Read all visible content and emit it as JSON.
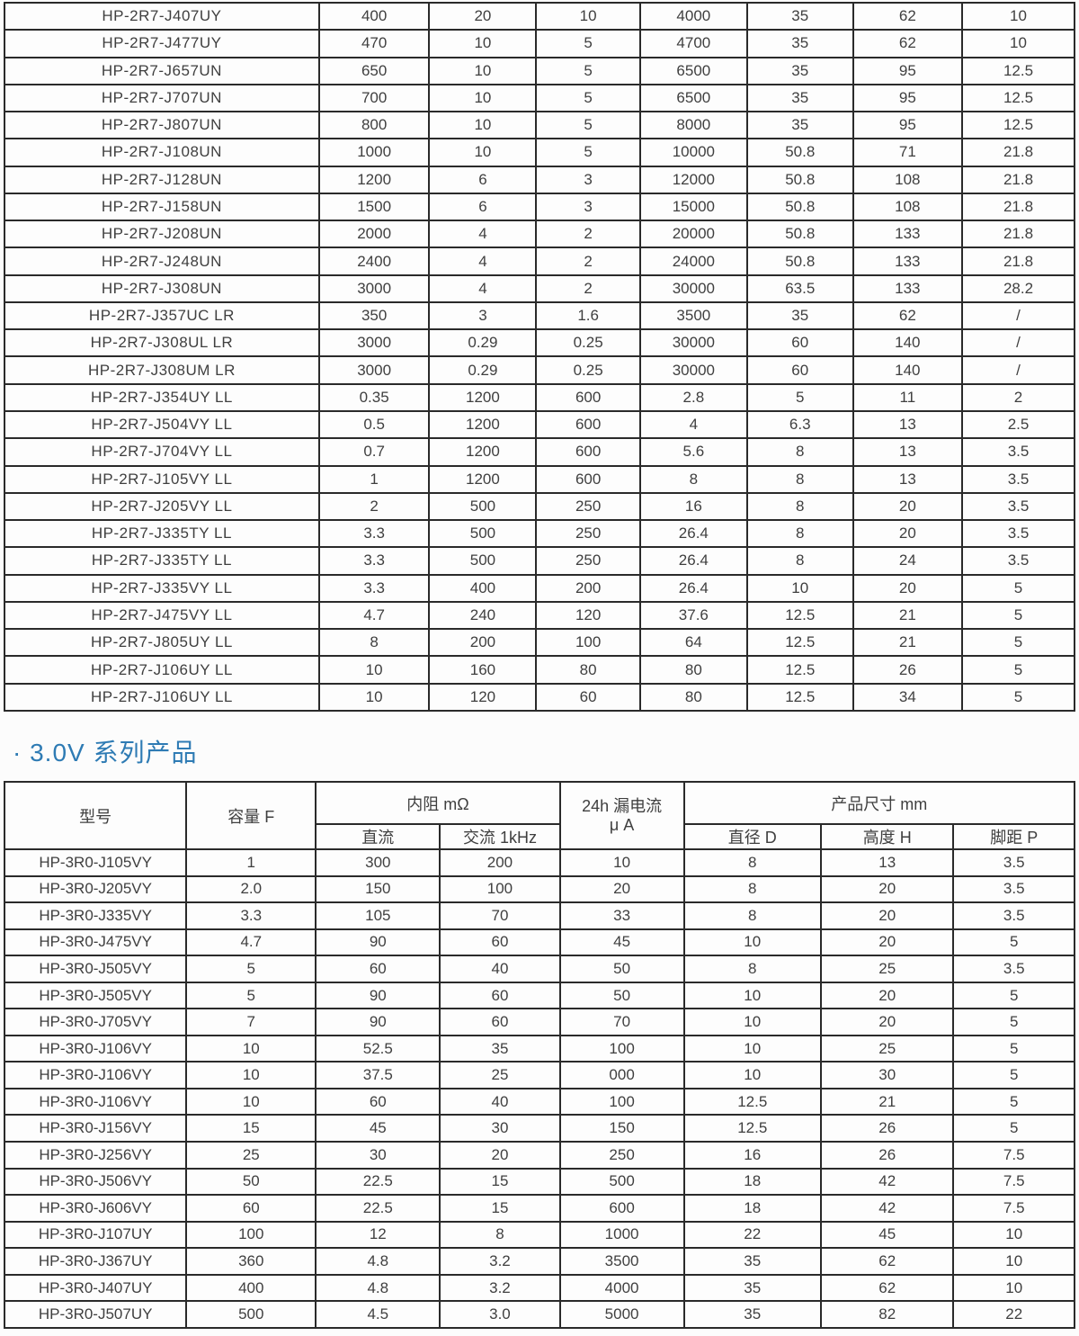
{
  "colors": {
    "section_title": "#2e7bb4",
    "table_border": "#2a2a2a",
    "text": "#3f3f3f",
    "background": "#fcfcfc"
  },
  "section": {
    "title": "· 3.0V 系列产品"
  },
  "table_2v7": {
    "rows": [
      [
        "HP-2R7-J407UY",
        "400",
        "20",
        "10",
        "4000",
        "35",
        "62",
        "10"
      ],
      [
        "HP-2R7-J477UY",
        "470",
        "10",
        "5",
        "4700",
        "35",
        "62",
        "10"
      ],
      [
        "HP-2R7-J657UN",
        "650",
        "10",
        "5",
        "6500",
        "35",
        "95",
        "12.5"
      ],
      [
        "HP-2R7-J707UN",
        "700",
        "10",
        "5",
        "6500",
        "35",
        "95",
        "12.5"
      ],
      [
        "HP-2R7-J807UN",
        "800",
        "10",
        "5",
        "8000",
        "35",
        "95",
        "12.5"
      ],
      [
        "HP-2R7-J108UN",
        "1000",
        "10",
        "5",
        "10000",
        "50.8",
        "71",
        "21.8"
      ],
      [
        "HP-2R7-J128UN",
        "1200",
        "6",
        "3",
        "12000",
        "50.8",
        "108",
        "21.8"
      ],
      [
        "HP-2R7-J158UN",
        "1500",
        "6",
        "3",
        "15000",
        "50.8",
        "108",
        "21.8"
      ],
      [
        "HP-2R7-J208UN",
        "2000",
        "4",
        "2",
        "20000",
        "50.8",
        "133",
        "21.8"
      ],
      [
        "HP-2R7-J248UN",
        "2400",
        "4",
        "2",
        "24000",
        "50.8",
        "133",
        "21.8"
      ],
      [
        "HP-2R7-J308UN",
        "3000",
        "4",
        "2",
        "30000",
        "63.5",
        "133",
        "28.2"
      ],
      [
        "HP-2R7-J357UC LR",
        "350",
        "3",
        "1.6",
        "3500",
        "35",
        "62",
        "/"
      ],
      [
        "HP-2R7-J308UL LR",
        "3000",
        "0.29",
        "0.25",
        "30000",
        "60",
        "140",
        "/"
      ],
      [
        "HP-2R7-J308UM LR",
        "3000",
        "0.29",
        "0.25",
        "30000",
        "60",
        "140",
        "/"
      ],
      [
        "HP-2R7-J354UY LL",
        "0.35",
        "1200",
        "600",
        "2.8",
        "5",
        "11",
        "2"
      ],
      [
        "HP-2R7-J504VY LL",
        "0.5",
        "1200",
        "600",
        "4",
        "6.3",
        "13",
        "2.5"
      ],
      [
        "HP-2R7-J704VY LL",
        "0.7",
        "1200",
        "600",
        "5.6",
        "8",
        "13",
        "3.5"
      ],
      [
        "HP-2R7-J105VY LL",
        "1",
        "1200",
        "600",
        "8",
        "8",
        "13",
        "3.5"
      ],
      [
        "HP-2R7-J205VY LL",
        "2",
        "500",
        "250",
        "16",
        "8",
        "20",
        "3.5"
      ],
      [
        "HP-2R7-J335TY LL",
        "3.3",
        "500",
        "250",
        "26.4",
        "8",
        "20",
        "3.5"
      ],
      [
        "HP-2R7-J335TY LL",
        "3.3",
        "500",
        "250",
        "26.4",
        "8",
        "24",
        "3.5"
      ],
      [
        "HP-2R7-J335VY LL",
        "3.3",
        "400",
        "200",
        "26.4",
        "10",
        "20",
        "5"
      ],
      [
        "HP-2R7-J475VY LL",
        "4.7",
        "240",
        "120",
        "37.6",
        "12.5",
        "21",
        "5"
      ],
      [
        "HP-2R7-J805UY LL",
        "8",
        "200",
        "100",
        "64",
        "12.5",
        "21",
        "5"
      ],
      [
        "HP-2R7-J106UY LL",
        "10",
        "160",
        "80",
        "80",
        "12.5",
        "26",
        "5"
      ],
      [
        "HP-2R7-J106UY LL",
        "10",
        "120",
        "60",
        "80",
        "12.5",
        "34",
        "5"
      ]
    ]
  },
  "table_3v0": {
    "header": {
      "model": "型号",
      "capacity": "容量 F",
      "esr_group": "内阻 mΩ",
      "esr_dc": "直流",
      "esr_ac": "交流 1kHz",
      "leakage_line1": "24h 漏电流",
      "leakage_line2": "μ A",
      "dims_group": "产品尺寸 mm",
      "dim_d": "直径 D",
      "dim_h": "高度 H",
      "dim_p": "脚距 P"
    },
    "rows": [
      [
        "HP-3R0-J105VY",
        "1",
        "300",
        "200",
        "10",
        "8",
        "13",
        "3.5"
      ],
      [
        "HP-3R0-J205VY",
        "2.0",
        "150",
        "100",
        "20",
        "8",
        "20",
        "3.5"
      ],
      [
        "HP-3R0-J335VY",
        "3.3",
        "105",
        "70",
        "33",
        "8",
        "20",
        "3.5"
      ],
      [
        "HP-3R0-J475VY",
        "4.7",
        "90",
        "60",
        "45",
        "10",
        "20",
        "5"
      ],
      [
        "HP-3R0-J505VY",
        "5",
        "60",
        "40",
        "50",
        "8",
        "25",
        "3.5"
      ],
      [
        "HP-3R0-J505VY",
        "5",
        "90",
        "60",
        "50",
        "10",
        "20",
        "5"
      ],
      [
        "HP-3R0-J705VY",
        "7",
        "90",
        "60",
        "70",
        "10",
        "20",
        "5"
      ],
      [
        "HP-3R0-J106VY",
        "10",
        "52.5",
        "35",
        "100",
        "10",
        "25",
        "5"
      ],
      [
        "HP-3R0-J106VY",
        "10",
        "37.5",
        "25",
        "000",
        "10",
        "30",
        "5"
      ],
      [
        "HP-3R0-J106VY",
        "10",
        "60",
        "40",
        "100",
        "12.5",
        "21",
        "5"
      ],
      [
        "HP-3R0-J156VY",
        "15",
        "45",
        "30",
        "150",
        "12.5",
        "26",
        "5"
      ],
      [
        "HP-3R0-J256VY",
        "25",
        "30",
        "20",
        "250",
        "16",
        "26",
        "7.5"
      ],
      [
        "HP-3R0-J506VY",
        "50",
        "22.5",
        "15",
        "500",
        "18",
        "42",
        "7.5"
      ],
      [
        "HP-3R0-J606VY",
        "60",
        "22.5",
        "15",
        "600",
        "18",
        "42",
        "7.5"
      ],
      [
        "HP-3R0-J107UY",
        "100",
        "12",
        "8",
        "1000",
        "22",
        "45",
        "10"
      ],
      [
        "HP-3R0-J367UY",
        "360",
        "4.8",
        "3.2",
        "3500",
        "35",
        "62",
        "10"
      ],
      [
        "HP-3R0-J407UY",
        "400",
        "4.8",
        "3.2",
        "4000",
        "35",
        "62",
        "10"
      ],
      [
        "HP-3R0-J507UY",
        "500",
        "4.5",
        "3.0",
        "5000",
        "35",
        "82",
        "22"
      ]
    ]
  }
}
